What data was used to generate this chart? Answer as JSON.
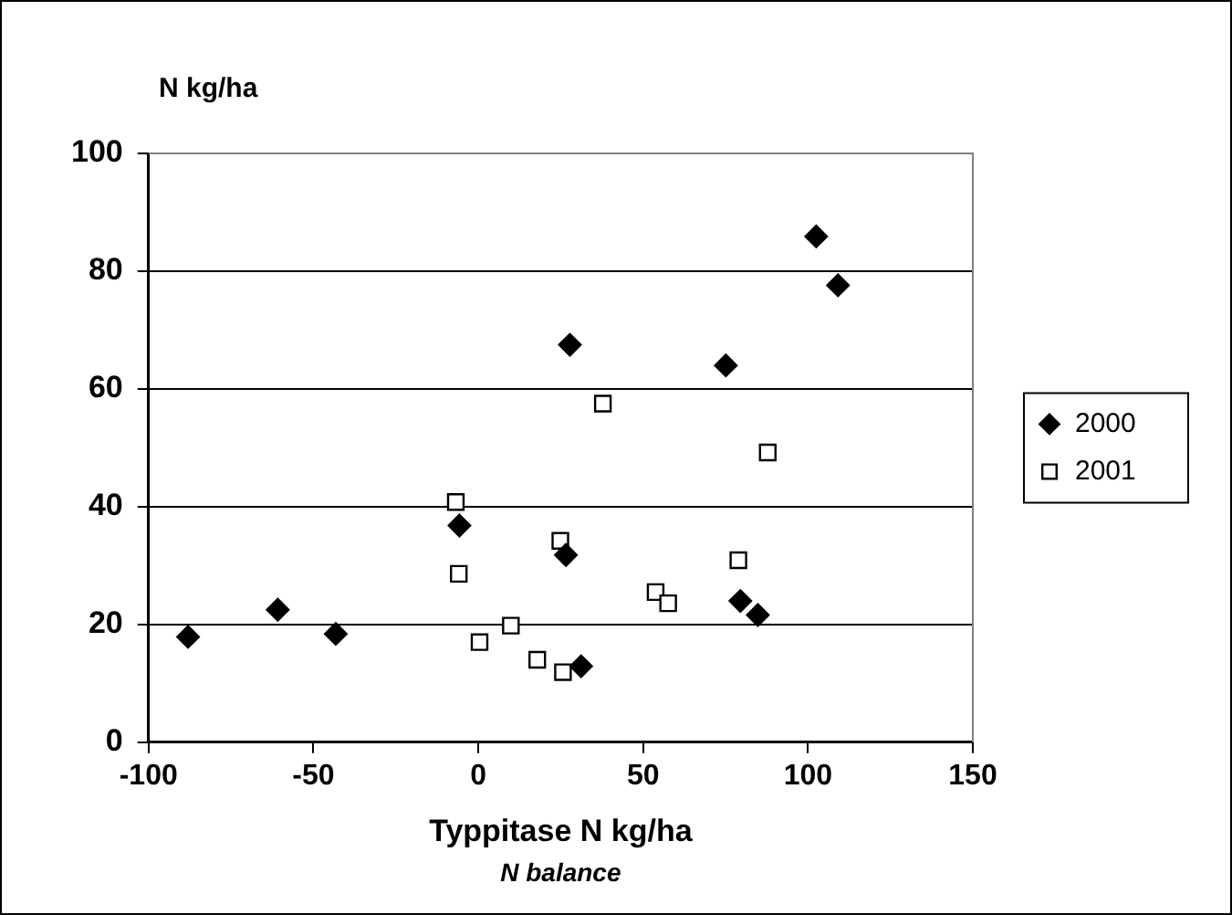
{
  "chart_data": {
    "type": "scatter",
    "ylabel": "N kg/ha",
    "xlabel": "Typpitase N kg/ha",
    "annotations": [
      "N balance"
    ],
    "xlim": [
      -100,
      150
    ],
    "xticks": [
      -100,
      -50,
      0,
      50,
      100,
      150
    ],
    "ylim": [
      0,
      100
    ],
    "yticks": [
      0,
      20,
      40,
      60,
      80,
      100
    ],
    "grid": "y",
    "legend": "right",
    "series": [
      {
        "name": "2000",
        "color": "#000000",
        "marker": "diamond",
        "x": [
          -88,
          -60.8,
          -43.2,
          -5.7,
          27.8,
          26.6,
          31.2,
          75.1,
          79.5,
          84.8,
          102.5,
          109.1
        ],
        "values": [
          17.9,
          22.5,
          18.4,
          36.8,
          67.5,
          31.8,
          12.9,
          64,
          24,
          21.6,
          85.9,
          77.6
        ]
      },
      {
        "name": "2001",
        "color": "#000000",
        "marker": "square",
        "x": [
          -6.8,
          -5.9,
          0.4,
          9.9,
          17.9,
          24.9,
          25.7,
          37.8,
          53.8,
          57.6,
          78.9,
          87.8
        ],
        "values": [
          40.8,
          28.6,
          17,
          19.8,
          14,
          34.2,
          11.9,
          57.5,
          25.5,
          23.6,
          30.9,
          49.2
        ]
      }
    ]
  }
}
